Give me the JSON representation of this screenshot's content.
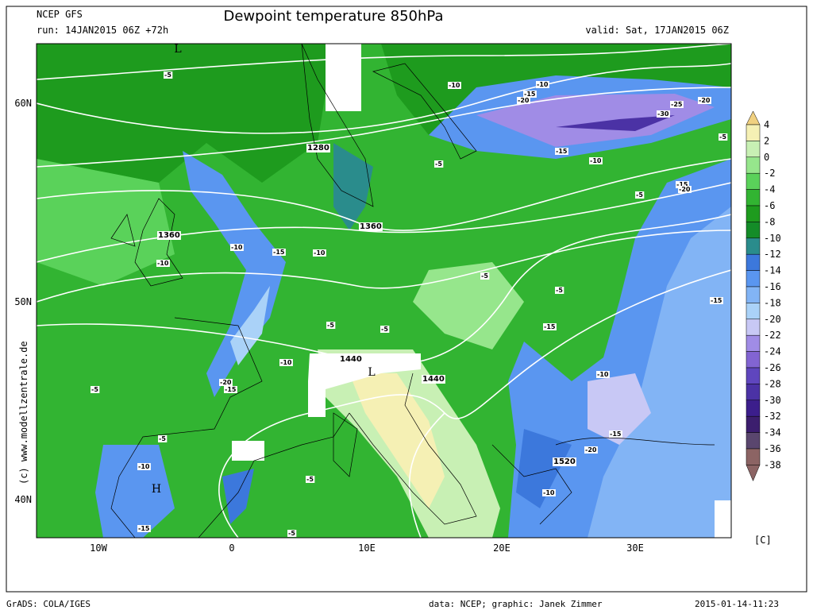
{
  "header": {
    "model": "NCEP GFS",
    "run": "run: 14JAN2015 06Z +72h",
    "title": "Dewpoint temperature 850hPa",
    "valid": "valid: Sat, 17JAN2015 06Z"
  },
  "map": {
    "lat_labels": [
      "60N",
      "50N",
      "40N"
    ],
    "lon_labels": [
      "10W",
      "0",
      "10E",
      "20E",
      "30E"
    ],
    "pressure_labels": [
      "L",
      "L",
      "H"
    ],
    "height_labels": [
      1280,
      1360,
      1360,
      1440,
      1440,
      1520
    ],
    "contour_labels": [
      -5,
      -5,
      -5,
      -5,
      -5,
      -5,
      -5,
      -5,
      -5,
      -5,
      -5,
      -5,
      -10,
      -10,
      -10,
      -10,
      -10,
      -10,
      -10,
      -10,
      -10,
      -10,
      -15,
      -15,
      -15,
      -15,
      -15,
      -15,
      -15,
      -15,
      -15,
      -20,
      -20,
      -20,
      -20,
      -20,
      -25,
      -30
    ]
  },
  "colorbar": {
    "labels": [
      4,
      2,
      0,
      -2,
      -4,
      -6,
      -8,
      -10,
      -12,
      -14,
      -16,
      -18,
      -20,
      -22,
      -24,
      -26,
      -28,
      -30,
      -32,
      -34,
      -36,
      -38
    ],
    "colors": [
      "#f0d080",
      "#f5f0b4",
      "#c8f0b4",
      "#96e68c",
      "#5ad25a",
      "#32b432",
      "#1e9b1e",
      "#148c28",
      "#2a8c8c",
      "#3c78dc",
      "#5a96f0",
      "#82b4f5",
      "#aad2f8",
      "#c8c8f5",
      "#a08ce6",
      "#8264d2",
      "#5f46be",
      "#4b32a5",
      "#3c1e8c",
      "#3c1e6e",
      "#5a466e",
      "#8c6464",
      "#8c6464"
    ],
    "unit": "[C]"
  },
  "side_text": "(c) www.modellzentrale.de",
  "footer": {
    "left": "GrADS: COLA/IGES",
    "center": "data: NCEP; graphic: Janek Zimmer",
    "right": "2015-01-14-11:23"
  }
}
